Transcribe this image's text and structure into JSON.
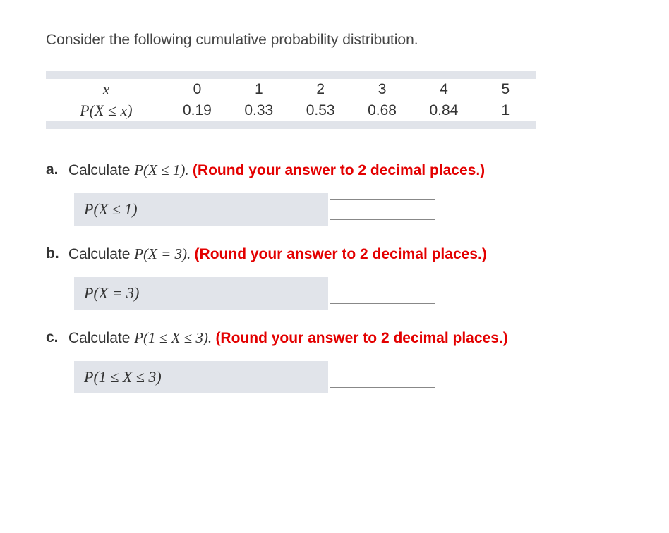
{
  "intro": "Consider the following cumulative probability distribution.",
  "table": {
    "row1_label": "x",
    "row2_label": "P(X ≤ x)",
    "x": [
      "0",
      "1",
      "2",
      "3",
      "4",
      "5"
    ],
    "p": [
      "0.19",
      "0.33",
      "0.53",
      "0.68",
      "0.84",
      "1"
    ]
  },
  "questions": {
    "a": {
      "label": "a.",
      "prefix": "Calculate ",
      "expr": "P(X ≤ 1). ",
      "hint": "(Round your answer to 2 decimal places.)",
      "answer_label": "P(X ≤ 1)"
    },
    "b": {
      "label": "b.",
      "prefix": "Calculate ",
      "expr": "P(X = 3). ",
      "hint": "(Round your answer to 2 decimal places.)",
      "answer_label": "P(X = 3)"
    },
    "c": {
      "label": "c.",
      "prefix": "Calculate ",
      "expr": "P(1 ≤ X ≤ 3). ",
      "hint": "(Round your answer to 2 decimal places.)",
      "answer_label": "P(1 ≤ X ≤ 3)"
    }
  },
  "colors": {
    "text": "#333333",
    "hint": "#e30000",
    "panel": "#e1e4ea",
    "input_border": "#888888",
    "background": "#ffffff"
  }
}
